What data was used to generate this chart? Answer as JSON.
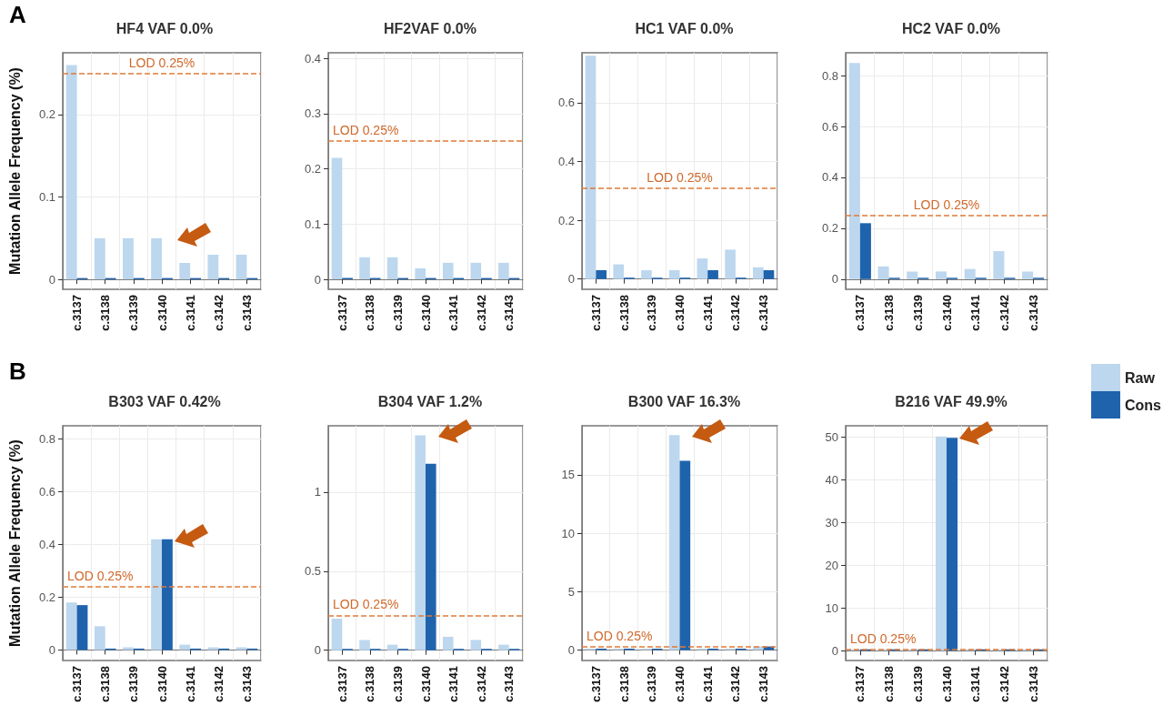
{
  "chart_data": [
    {
      "type": "bar",
      "title": "HF4 VAF 0.0%",
      "ylabel": "Mutation Allele Frequency (%)",
      "annotations": [
        "A"
      ],
      "categories": [
        "c.3137",
        "c.3138",
        "c.3139",
        "c.3140",
        "c.3141",
        "c.3142",
        "c.3143"
      ],
      "series": [
        {
          "color": "#bdd7ee",
          "values": [
            0.26,
            0.05,
            0.05,
            0.05,
            0.02,
            0.03,
            0.03
          ]
        },
        {
          "color": "#1f63ad",
          "values": [
            0,
            0,
            0,
            0,
            0,
            0,
            0
          ]
        }
      ],
      "ylim": [
        -0.012,
        0.275
      ],
      "yticks": [
        0,
        0.1,
        0.2
      ],
      "grid": true,
      "ref_lines": [
        {
          "axis": "y",
          "value": 0.25,
          "label": "LOD 0.25%",
          "color": "#e07b39",
          "line_style": "dashed"
        }
      ]
    },
    {
      "type": "bar",
      "title": "HF2VAF 0.0%",
      "categories": [
        "c.3137",
        "c.3138",
        "c.3139",
        "c.3140",
        "c.3141",
        "c.3142",
        "c.3143"
      ],
      "series": [
        {
          "color": "#bdd7ee",
          "values": [
            0.22,
            0.04,
            0.04,
            0.02,
            0.03,
            0.03,
            0.03
          ]
        },
        {
          "color": "#1f63ad",
          "values": [
            0,
            0,
            0,
            0,
            0,
            0,
            0
          ]
        }
      ],
      "ylim": [
        -0.018,
        0.41
      ],
      "yticks": [
        0,
        0.1,
        0.2,
        0.3,
        0.4
      ],
      "grid": true,
      "ref_lines": [
        {
          "axis": "y",
          "value": 0.25,
          "label": "LOD 0.25%",
          "color": "#e07b39",
          "line_style": "dashed"
        }
      ]
    },
    {
      "type": "bar",
      "title": "HC1 VAF 0.0%",
      "categories": [
        "c.3137",
        "c.3138",
        "c.3139",
        "c.3140",
        "c.3141",
        "c.3142",
        "c.3143"
      ],
      "series": [
        {
          "color": "#bdd7ee",
          "values": [
            0.76,
            0.05,
            0.03,
            0.03,
            0.07,
            0.1,
            0.04
          ]
        },
        {
          "color": "#1f63ad",
          "values": [
            0.03,
            0,
            0,
            0,
            0.03,
            0,
            0.03
          ]
        }
      ],
      "ylim": [
        -0.035,
        0.77
      ],
      "yticks": [
        0,
        0.2,
        0.4,
        0.6
      ],
      "grid": true,
      "ref_lines": [
        {
          "axis": "y",
          "value": 0.31,
          "label": "LOD 0.25%",
          "color": "#e07b39",
          "line_style": "dashed"
        }
      ]
    },
    {
      "type": "bar",
      "title": "HC2 VAF 0.0%",
      "legend": "right",
      "categories": [
        "c.3137",
        "c.3138",
        "c.3139",
        "c.3140",
        "c.3141",
        "c.3142",
        "c.3143"
      ],
      "series": [
        {
          "name": "Raw",
          "color": "#bdd7ee",
          "values": [
            0.85,
            0.05,
            0.03,
            0.03,
            0.04,
            0.11,
            0.03
          ]
        },
        {
          "name": "Cons",
          "color": "#1f63ad",
          "values": [
            0.22,
            0,
            0,
            0,
            0,
            0,
            0
          ]
        }
      ],
      "ylim": [
        -0.04,
        0.89
      ],
      "yticks": [
        0,
        0.2,
        0.4,
        0.6,
        0.8
      ],
      "grid": true,
      "ref_lines": [
        {
          "axis": "y",
          "value": 0.25,
          "label": "LOD 0.25%",
          "color": "#e07b39",
          "line_style": "dashed"
        }
      ]
    },
    {
      "type": "bar",
      "title": "B303 VAF 0.42%",
      "ylabel": "Mutation Allele Frequency (%)",
      "annotations": [
        "B"
      ],
      "categories": [
        "c.3137",
        "c.3138",
        "c.3139",
        "c.3140",
        "c.3141",
        "c.3142",
        "c.3143"
      ],
      "series": [
        {
          "color": "#bdd7ee",
          "values": [
            0.18,
            0.09,
            0.01,
            0.42,
            0.02,
            0.01,
            0.01
          ]
        },
        {
          "color": "#1f63ad",
          "values": [
            0.17,
            0,
            0,
            0.42,
            0,
            0,
            0
          ]
        }
      ],
      "ylim": [
        -0.04,
        0.85
      ],
      "yticks": [
        0,
        0.2,
        0.4,
        0.6,
        0.8
      ],
      "grid": true,
      "ref_lines": [
        {
          "axis": "y",
          "value": 0.24,
          "label": "LOD 0.25%",
          "color": "#e07b39",
          "line_style": "dashed"
        }
      ]
    },
    {
      "type": "bar",
      "title": "B304 VAF 1.2%",
      "categories": [
        "c.3137",
        "c.3138",
        "c.3139",
        "c.3140",
        "c.3141",
        "c.3142",
        "c.3143"
      ],
      "series": [
        {
          "color": "#bdd7ee",
          "values": [
            0.2,
            0.065,
            0.035,
            1.36,
            0.085,
            0.065,
            0.035
          ]
        },
        {
          "color": "#1f63ad",
          "values": [
            0,
            0,
            0,
            1.18,
            0,
            0,
            0
          ]
        }
      ],
      "ylim": [
        -0.065,
        1.42
      ],
      "yticks": [
        0,
        0.5,
        1
      ],
      "grid": true,
      "ref_lines": [
        {
          "axis": "y",
          "value": 0.22,
          "label": "LOD 0.25%",
          "color": "#e07b39",
          "line_style": "dashed"
        }
      ]
    },
    {
      "type": "bar",
      "title": "B300 VAF 16.3%",
      "categories": [
        "c.3137",
        "c.3138",
        "c.3139",
        "c.3140",
        "c.3141",
        "c.3142",
        "c.3143"
      ],
      "series": [
        {
          "color": "#bdd7ee",
          "values": [
            0,
            0,
            0,
            18.4,
            0,
            0,
            0.3
          ]
        },
        {
          "color": "#1f63ad",
          "values": [
            0,
            0,
            0,
            16.2,
            0,
            0,
            0.3
          ]
        }
      ],
      "ylim": [
        -0.9,
        19.2
      ],
      "yticks": [
        0,
        5,
        10,
        15
      ],
      "grid": true,
      "ref_lines": [
        {
          "axis": "y",
          "value": 0.25,
          "label": "LOD 0.25%",
          "color": "#e07b39",
          "line_style": "dashed"
        }
      ]
    },
    {
      "type": "bar",
      "title": "B216 VAF 49.9%",
      "categories": [
        "c.3137",
        "c.3138",
        "c.3139",
        "c.3140",
        "c.3141",
        "c.3142",
        "c.3143"
      ],
      "series": [
        {
          "color": "#bdd7ee",
          "values": [
            0,
            0,
            0,
            50.2,
            0,
            0,
            0
          ]
        },
        {
          "color": "#1f63ad",
          "values": [
            0,
            0,
            0,
            49.9,
            0,
            0,
            0
          ]
        }
      ],
      "ylim": [
        -2.3,
        52.7
      ],
      "yticks": [
        0,
        10,
        20,
        30,
        40,
        50
      ],
      "grid": true,
      "ref_lines": [
        {
          "axis": "y",
          "value": 0.25,
          "label": "LOD 0.25%",
          "color": "#e07b39",
          "line_style": "dashed"
        }
      ]
    }
  ]
}
